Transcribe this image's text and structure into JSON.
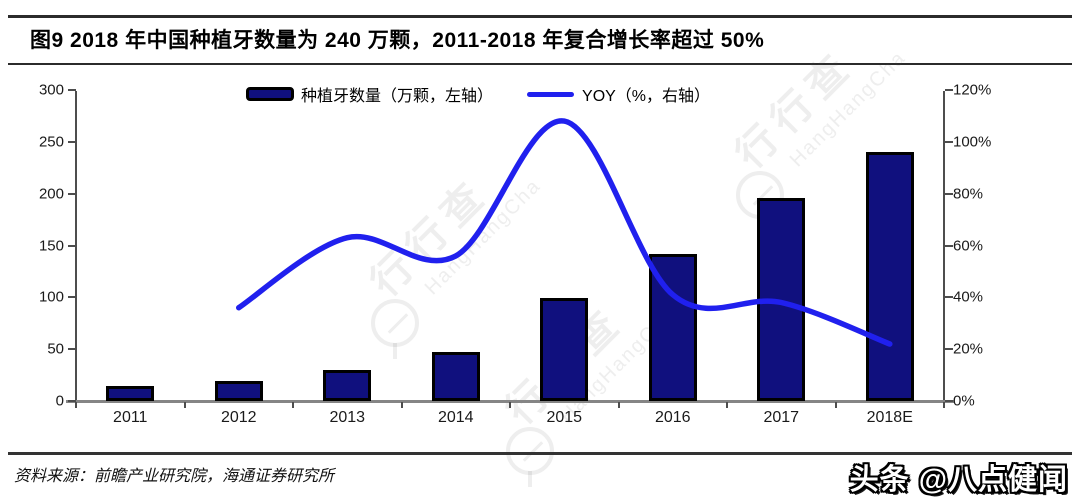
{
  "header": {
    "title": "图9  2018 年中国种植牙数量为 240 万颗，2011-2018 年复合增长率超过 50%"
  },
  "legend": {
    "bars_label": "种植牙数量（万颗，左轴）",
    "line_label": "YOY（%，右轴）"
  },
  "chart_data": {
    "type": "bar",
    "subtype": "bar+line-dual-axis",
    "title": "2018 年中国种植牙数量为 240 万颗，2011-2018 年复合增长率超过 50%",
    "categories": [
      "2011",
      "2012",
      "2013",
      "2014",
      "2015",
      "2016",
      "2017",
      "2018E"
    ],
    "series": [
      {
        "name": "种植牙数量（万颗，左轴）",
        "type": "bar",
        "axis": "left",
        "values": [
          14,
          19,
          30,
          47,
          99,
          142,
          196,
          240
        ],
        "color": "#10107E"
      },
      {
        "name": "YOY（%，右轴）",
        "type": "line",
        "axis": "right",
        "values": [
          null,
          36,
          63,
          56,
          108,
          41,
          38,
          22
        ],
        "color": "#2020EE"
      }
    ],
    "left_axis": {
      "ticks": [
        0,
        50,
        100,
        150,
        200,
        250,
        300
      ],
      "max": 300,
      "label": "万颗"
    },
    "right_axis": {
      "ticks": [
        "0%",
        "20%",
        "40%",
        "60%",
        "80%",
        "100%",
        "120%"
      ],
      "max": 120,
      "label": "%"
    },
    "grid": false,
    "legend_position": "top-center"
  },
  "watermark": {
    "cn": "行行查",
    "en": "HangHangCha"
  },
  "footer": {
    "source": "资料来源：前瞻产业研究院，海通证券研究所",
    "credit": "头条 @八点健闻"
  },
  "colors": {
    "bar_fill": "#10107E",
    "bar_border": "#000000",
    "line": "#2020EE",
    "axis_spine": "#4d4d4d",
    "baseline": "#858585",
    "text": "#1a1a1a"
  }
}
